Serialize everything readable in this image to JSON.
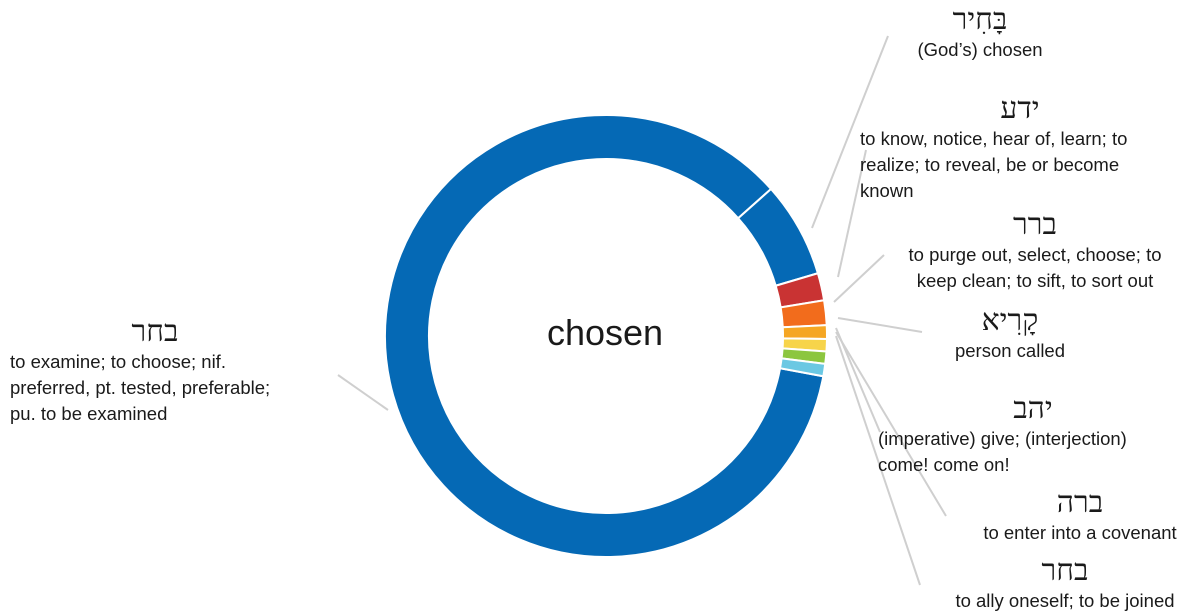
{
  "center_label": "chosen",
  "chart_data": {
    "type": "pie",
    "center_text": "chosen",
    "slices": [
      {
        "lemma": "בחר",
        "gloss": "to examine; to choose; nif. preferred, pt. tested, preferable; pu. to be examined",
        "value": 85.5,
        "color": "#0569b5"
      },
      {
        "lemma": "בָּחִיר",
        "gloss": "(God’s) chosen",
        "value": 7.0,
        "color": "#0569b5"
      },
      {
        "lemma": "ידע",
        "gloss": "to know, notice, hear of, learn; to realize; to reveal, be or become known",
        "value": 2.0,
        "color": "#c93333"
      },
      {
        "lemma": "ברר",
        "gloss": "to purge out, select, choose; to keep clean; to sift, to sort out",
        "value": 1.8,
        "color": "#f26c1c"
      },
      {
        "lemma": "קָרִיא",
        "gloss": "person called",
        "value": 1.0,
        "color": "#f5a623"
      },
      {
        "lemma": "יהב",
        "gloss": "(imperative) give; (interjection) come! come on!",
        "value": 0.9,
        "color": "#f7d44a"
      },
      {
        "lemma": "ברה",
        "gloss": "to enter into a covenant",
        "value": 0.9,
        "color": "#8cc63f"
      },
      {
        "lemma": "בחר",
        "gloss": "to ally oneself; to be joined",
        "value": 0.9,
        "color": "#6bc8e3"
      }
    ]
  },
  "labels": [
    {
      "heb": "בָּחִיר",
      "gloss_lines": [
        "(God’s) chosen"
      ]
    },
    {
      "heb": "ידע",
      "gloss_lines": [
        "to know, notice, hear of, learn; to",
        "realize; to reveal, be or become",
        "known"
      ]
    },
    {
      "heb": "ברר",
      "gloss_lines": [
        "to purge out, select, choose; to",
        "keep clean; to sift, to sort out"
      ]
    },
    {
      "heb": "קָרִיא",
      "gloss_lines": [
        "person called"
      ]
    },
    {
      "heb": "יהב",
      "gloss_lines": [
        "(imperative) give; (interjection)",
        "come! come on!"
      ]
    },
    {
      "heb": "ברה",
      "gloss_lines": [
        "to enter into a covenant"
      ]
    },
    {
      "heb": "בחר",
      "gloss_lines": [
        "to ally oneself; to be joined"
      ]
    },
    {
      "heb": "בחר",
      "gloss_lines": [
        "to examine; to choose; nif.",
        "preferred, pt. tested, preferable;",
        "pu. to be examined"
      ]
    }
  ]
}
